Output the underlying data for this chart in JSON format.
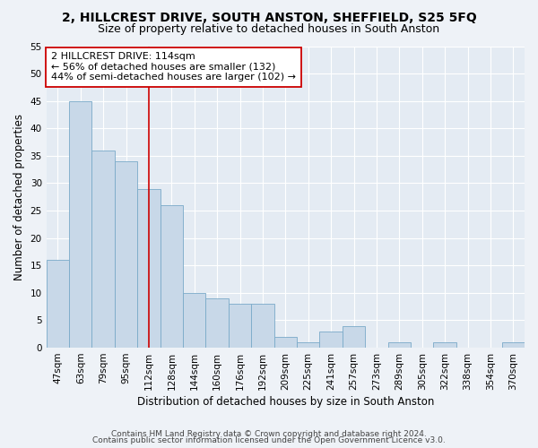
{
  "title": "2, HILLCREST DRIVE, SOUTH ANSTON, SHEFFIELD, S25 5FQ",
  "subtitle": "Size of property relative to detached houses in South Anston",
  "xlabel": "Distribution of detached houses by size in South Anston",
  "ylabel": "Number of detached properties",
  "categories": [
    "47sqm",
    "63sqm",
    "79sqm",
    "95sqm",
    "112sqm",
    "128sqm",
    "144sqm",
    "160sqm",
    "176sqm",
    "192sqm",
    "209sqm",
    "225sqm",
    "241sqm",
    "257sqm",
    "273sqm",
    "289sqm",
    "305sqm",
    "322sqm",
    "338sqm",
    "354sqm",
    "370sqm"
  ],
  "values": [
    16,
    45,
    36,
    34,
    29,
    26,
    10,
    9,
    8,
    8,
    2,
    1,
    3,
    4,
    0,
    1,
    0,
    1,
    0,
    0,
    1
  ],
  "bar_color": "#c8d8e8",
  "bar_edge_color": "#7aaac8",
  "vline_x": 4,
  "vline_color": "#cc0000",
  "annotation_text": "2 HILLCREST DRIVE: 114sqm\n← 56% of detached houses are smaller (132)\n44% of semi-detached houses are larger (102) →",
  "annotation_box_color": "#ffffff",
  "annotation_box_edge": "#cc0000",
  "ylim": [
    0,
    55
  ],
  "yticks": [
    0,
    5,
    10,
    15,
    20,
    25,
    30,
    35,
    40,
    45,
    50,
    55
  ],
  "footer1": "Contains HM Land Registry data © Crown copyright and database right 2024.",
  "footer2": "Contains public sector information licensed under the Open Government Licence v3.0.",
  "bg_color": "#eef2f7",
  "plot_bg_color": "#e4ebf3",
  "grid_color": "#ffffff",
  "title_fontsize": 10,
  "subtitle_fontsize": 9,
  "axis_label_fontsize": 8.5,
  "tick_fontsize": 7.5,
  "annotation_fontsize": 8,
  "footer_fontsize": 6.5
}
